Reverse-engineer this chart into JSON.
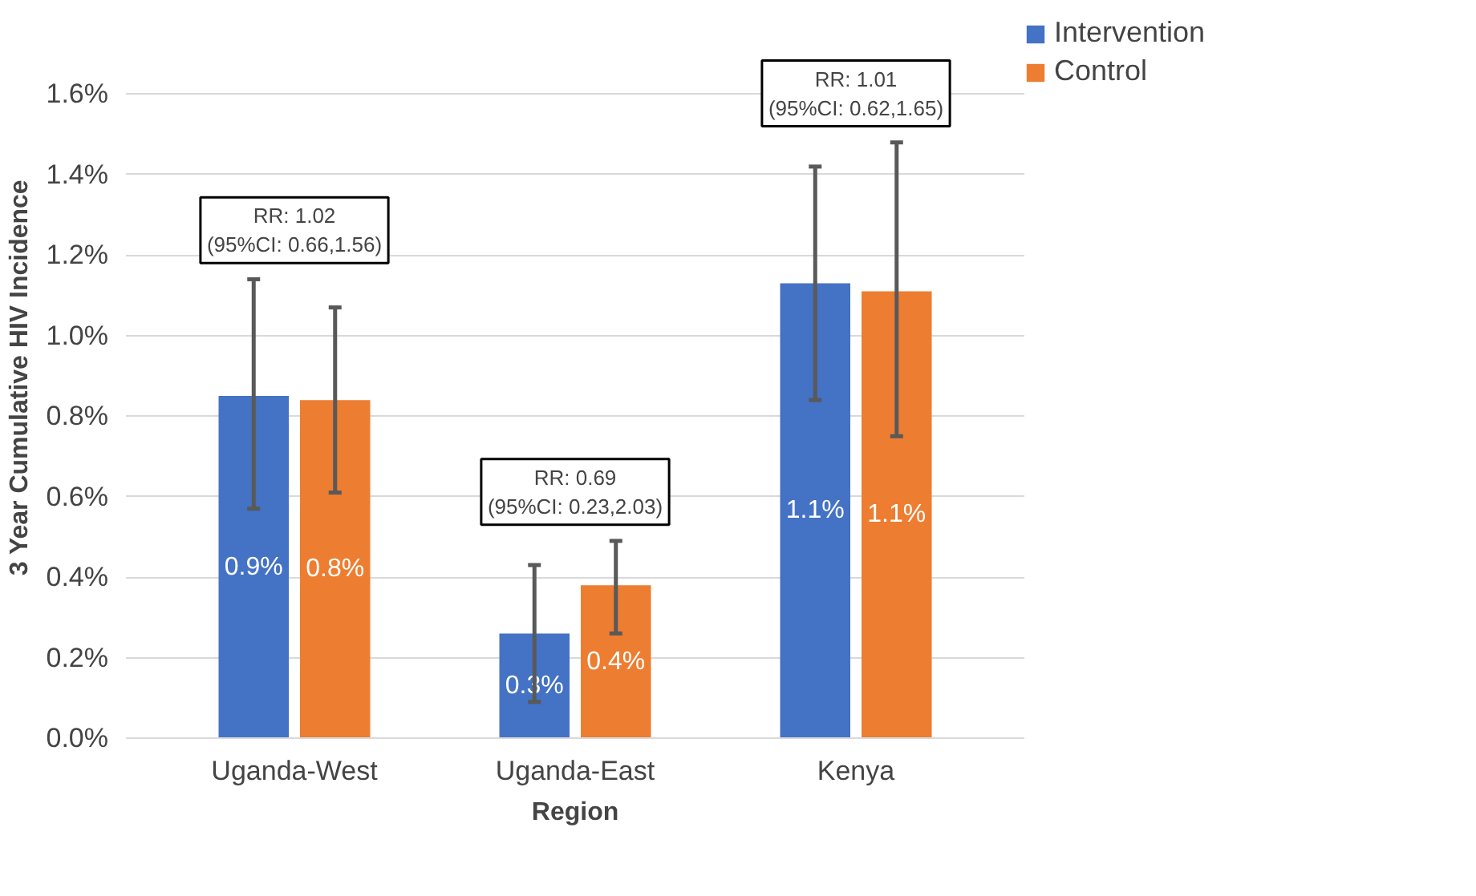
{
  "chart_data": {
    "type": "bar",
    "xlabel": "Region",
    "ylabel": "3 Year Cumulative HIV Incidence",
    "categories": [
      "Uganda-West",
      "Uganda-East",
      "Kenya"
    ],
    "series": [
      {
        "name": "Intervention",
        "color": "#4472c4",
        "values": [
          0.85,
          0.26,
          1.13
        ],
        "errors": [
          [
            0.57,
            1.14
          ],
          [
            0.09,
            0.43
          ],
          [
            0.84,
            1.42
          ]
        ],
        "value_labels": [
          "0.9%",
          "0.3%",
          "1.1%"
        ]
      },
      {
        "name": "Control",
        "color": "#ed7d31",
        "values": [
          0.84,
          0.38,
          1.11
        ],
        "errors": [
          [
            0.61,
            1.07
          ],
          [
            0.26,
            0.49
          ],
          [
            0.75,
            1.48
          ]
        ],
        "value_labels": [
          "0.8%",
          "0.4%",
          "1.1%"
        ]
      }
    ],
    "ylim": [
      0,
      1.6
    ],
    "yticks": [
      {
        "value": 0,
        "label": "0.0%"
      },
      {
        "value": 0.2,
        "label": "0.2%"
      },
      {
        "value": 0.4,
        "label": "0.4%"
      },
      {
        "value": 0.6,
        "label": "0.6%"
      },
      {
        "value": 0.8,
        "label": "0.8%"
      },
      {
        "value": 1.0,
        "label": "1.0%"
      },
      {
        "value": 1.2,
        "label": "1.2%"
      },
      {
        "value": 1.4,
        "label": "1.4%"
      },
      {
        "value": 1.6,
        "label": "1.6%"
      }
    ],
    "grid": "y",
    "legend": "right",
    "annotations": [
      "RR: 1.02\n(95%CI: 0.66,1.56)",
      "RR: 0.69\n(95%CI: 0.23,2.03)",
      "RR: 1.01\n(95%CI: 0.62,1.65)"
    ]
  }
}
